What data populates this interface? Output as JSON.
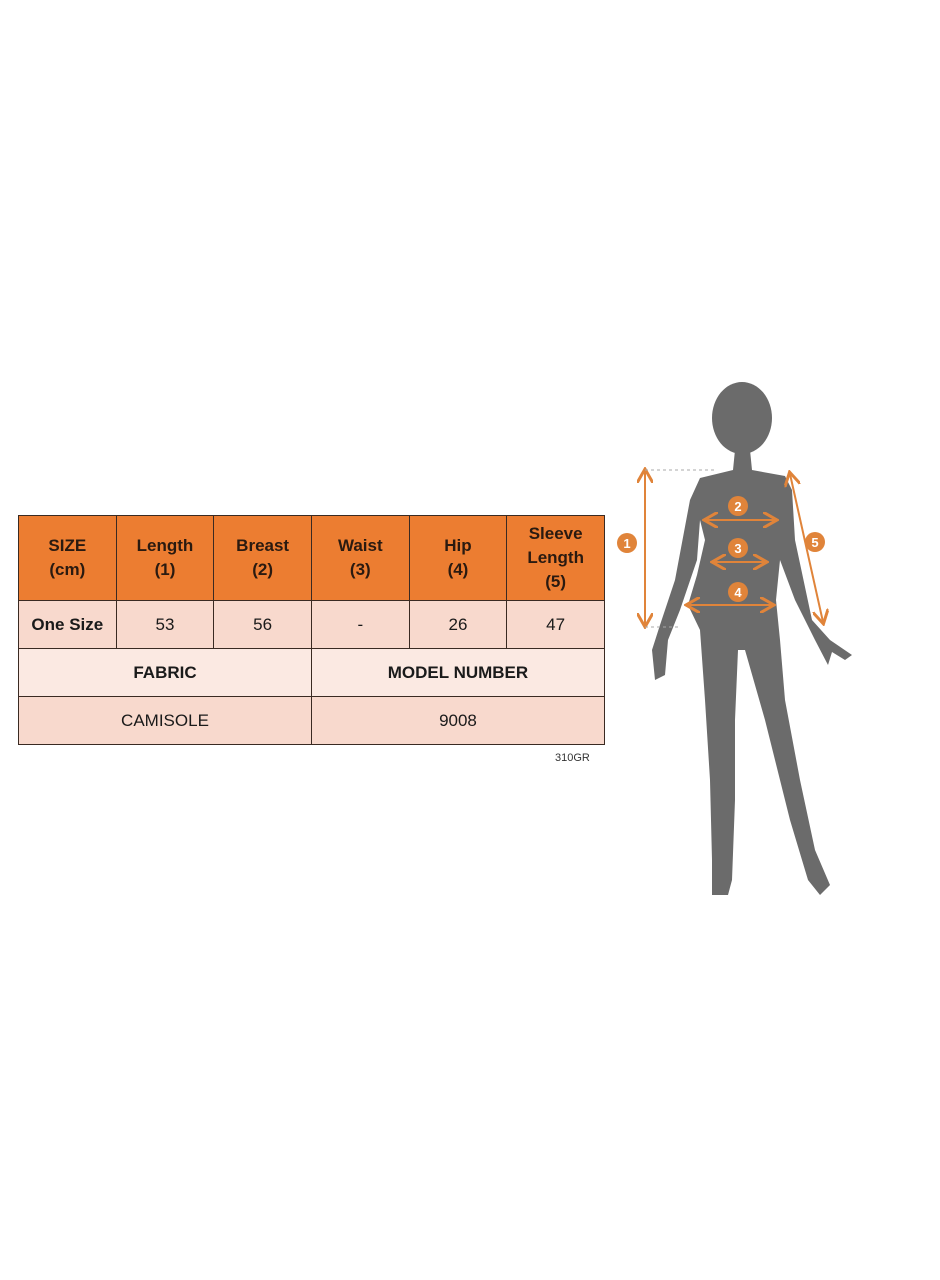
{
  "table": {
    "headers": [
      [
        "SIZE",
        "(cm)"
      ],
      [
        "Length",
        "(1)"
      ],
      [
        "Breast",
        "(2)"
      ],
      [
        "Waist",
        "(3)"
      ],
      [
        "Hip",
        "(4)"
      ],
      [
        "Sleeve",
        "Length",
        "(5)"
      ]
    ],
    "row": [
      "One Size",
      "53",
      "56",
      "-",
      "26",
      "47"
    ],
    "info_labels": [
      "FABRIC",
      "MODEL NUMBER"
    ],
    "info_values": [
      "CAMISOLE",
      "9008"
    ]
  },
  "code": "310GR",
  "figure": {
    "markers": [
      "1",
      "2",
      "3",
      "4",
      "5"
    ],
    "accent_color": "#e0843a",
    "silhouette_color": "#6b6b6b"
  }
}
